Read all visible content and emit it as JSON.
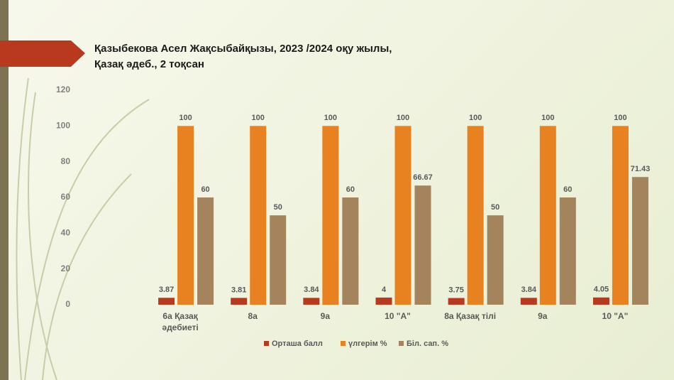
{
  "chart_data": {
    "type": "bar",
    "title": "Қазыбекова Асел Жақсыбайқызы, 2023 /2024 оқу жылы,\nҚазақ әдеб., 2 тоқсан",
    "categories": [
      "6а Қазақ\nәдебиеті",
      "8а",
      "9а",
      "10 \"А\"",
      "8а Қазақ  тілі",
      "9а",
      "10 \"А\""
    ],
    "series": [
      {
        "name": "Орташа балл",
        "color": "#b8391e",
        "values": [
          3.87,
          3.81,
          3.84,
          4,
          3.75,
          3.84,
          4.05
        ]
      },
      {
        "name": "үлгерім %",
        "color": "#e8811f",
        "values": [
          100,
          100,
          100,
          100,
          100,
          100,
          100
        ]
      },
      {
        "name": "Біл. сап. %",
        "color": "#a3845c",
        "values": [
          60,
          50,
          60,
          66.67,
          50,
          60,
          71.43
        ]
      }
    ],
    "ylim": [
      0,
      120
    ],
    "yticks": [
      0,
      20,
      40,
      60,
      80,
      100,
      120
    ],
    "grid": false
  }
}
